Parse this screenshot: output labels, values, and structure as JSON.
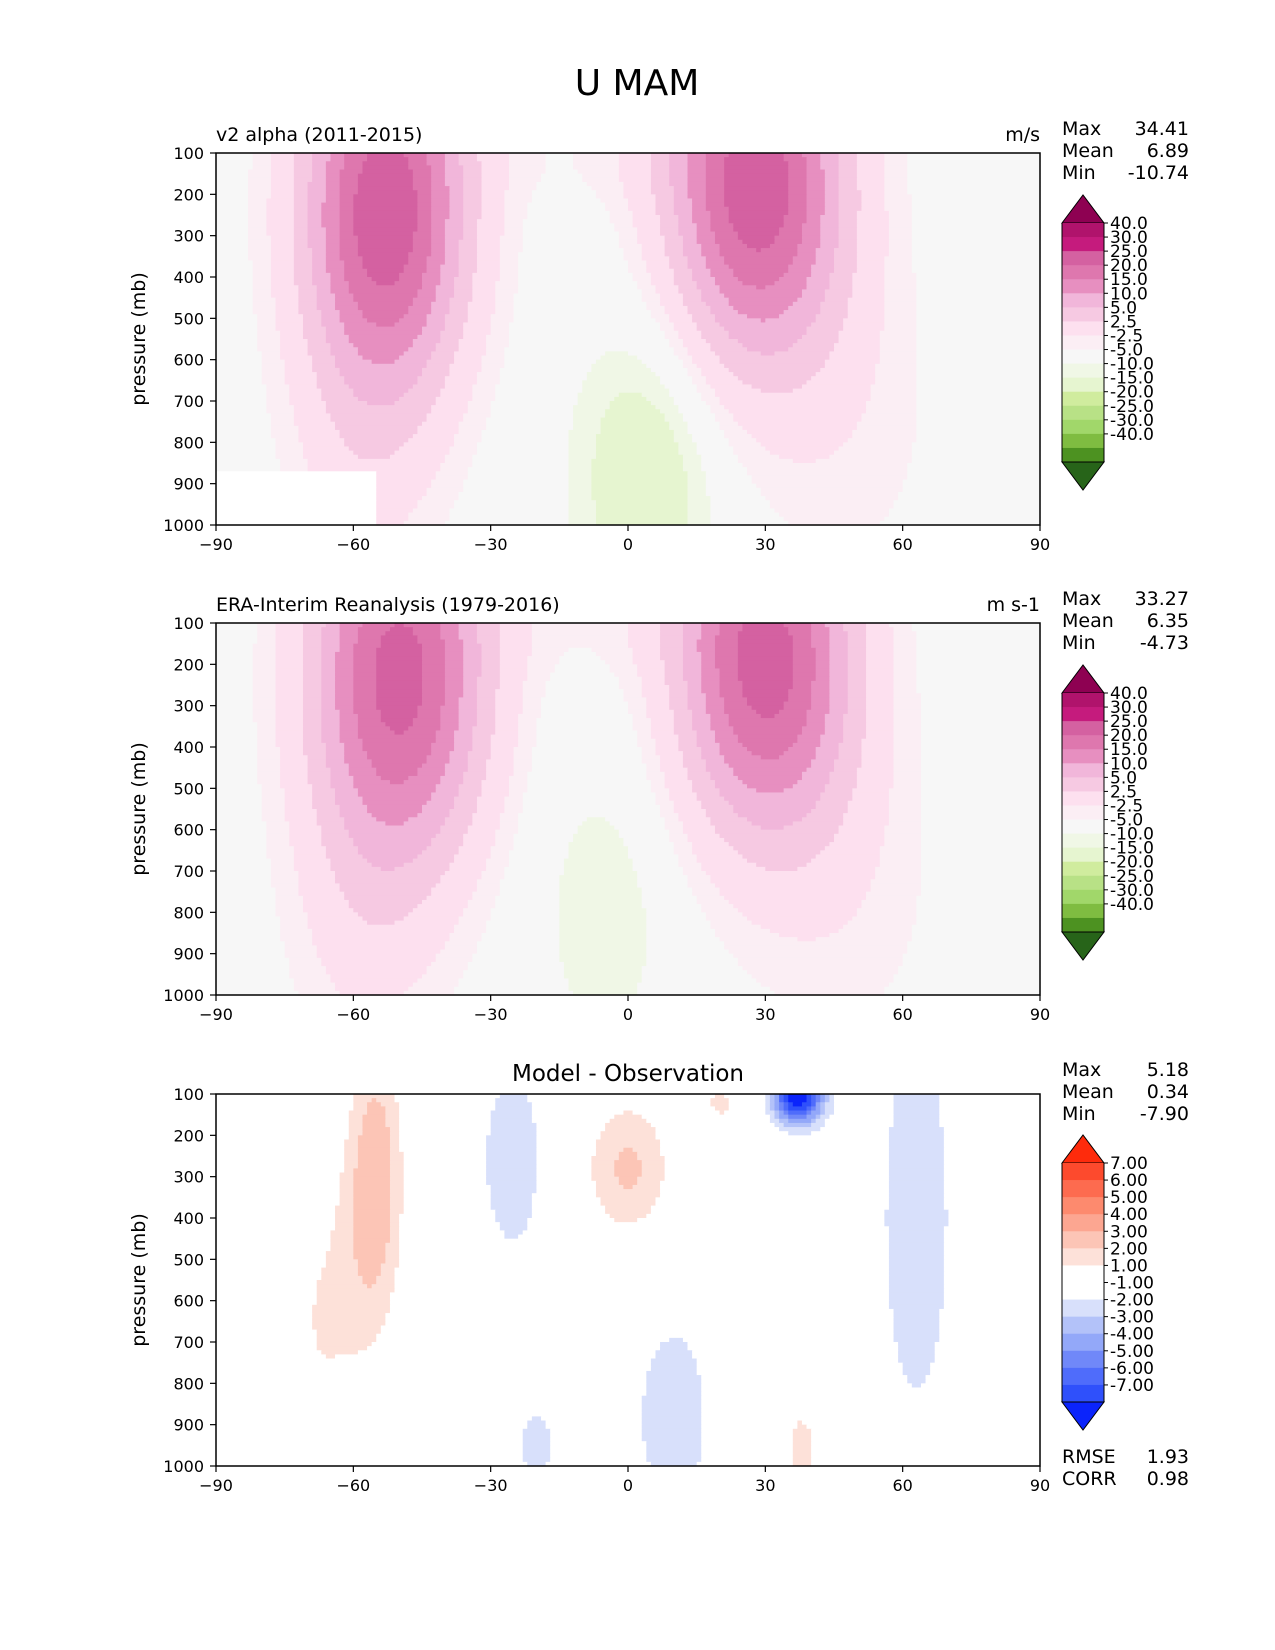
{
  "title": "U MAM",
  "palettes": {
    "full_field": [
      "#276419",
      "#4d9221",
      "#7fbc41",
      "#a1d76a",
      "#b8e186",
      "#d0ec9e",
      "#e6f5d0",
      "#f0f7e6",
      "#f7f7f7",
      "#fbeef4",
      "#fde0ef",
      "#f6c9e2",
      "#f1b6da",
      "#e78fc0",
      "#de77ae",
      "#d461a1",
      "#c51b7d",
      "#b0136c",
      "#8e0152"
    ],
    "difference": [
      "#0b24fb",
      "#2f50fb",
      "#4f6cfb",
      "#7088f9",
      "#93a8f9",
      "#b3c2f9",
      "#d8e0fb",
      "#ffffff",
      "#ffffff",
      "#fde1d9",
      "#fcc5b6",
      "#fca691",
      "#fd8a6e",
      "#fd6b4f",
      "#fd4a2d",
      "#fe2b0c"
    ]
  },
  "chart_data": [
    {
      "type": "contour",
      "panel": "model",
      "left_title": "v2 alpha (2011-2015)",
      "right_title": "m/s",
      "xlabel": "",
      "ylabel": "pressure (mb)",
      "xlim": [
        -90,
        90
      ],
      "ylim": [
        1000,
        100
      ],
      "xticks": [
        "−90",
        "−60",
        "−30",
        "0",
        "30",
        "60",
        "90"
      ],
      "yticks": [
        "100",
        "200",
        "300",
        "400",
        "500",
        "600",
        "700",
        "800",
        "900",
        "1000"
      ],
      "stats": {
        "max_label": "Max",
        "max": "34.41",
        "mean_label": "Mean",
        "mean": "6.89",
        "min_label": "Min",
        "min": "-10.74"
      },
      "colorbar_ticks": [
        "40.0",
        "30.0",
        "25.0",
        "20.0",
        "15.0",
        "10.0",
        "5.0",
        "2.5",
        "-2.5",
        "-5.0",
        "-10.0",
        "-15.0",
        "-20.0",
        "-25.0",
        "-30.0",
        "-40.0"
      ],
      "jets": [
        {
          "lat": -53,
          "p": 240,
          "peak": 34,
          "sx": 13,
          "sp": 320
        },
        {
          "lat": 28,
          "p": 190,
          "peak": 33,
          "sx": 14,
          "sp": 300
        }
      ],
      "easterly": {
        "lat": 4,
        "p": 880,
        "peak": -9
      },
      "no_data_region": {
        "lat": [
          -90,
          -55
        ],
        "p_below": 870
      }
    },
    {
      "type": "contour",
      "panel": "observation",
      "left_title": "ERA-Interim Reanalysis (1979-2016)",
      "right_title": "m s-1",
      "xlabel": "",
      "ylabel": "pressure (mb)",
      "xlim": [
        -90,
        90
      ],
      "ylim": [
        1000,
        100
      ],
      "xticks": [
        "−90",
        "−60",
        "−30",
        "0",
        "30",
        "60",
        "90"
      ],
      "yticks": [
        "100",
        "200",
        "300",
        "400",
        "500",
        "600",
        "700",
        "800",
        "900",
        "1000"
      ],
      "stats": {
        "max_label": "Max",
        "max": "33.27",
        "mean_label": "Mean",
        "mean": "6.35",
        "min_label": "Min",
        "min": "-4.73"
      },
      "colorbar_ticks": [
        "40.0",
        "30.0",
        "25.0",
        "20.0",
        "15.0",
        "10.0",
        "5.0",
        "2.5",
        "-2.5",
        "-5.0",
        "-10.0",
        "-15.0",
        "-20.0",
        "-25.0",
        "-30.0",
        "-40.0"
      ],
      "jets": [
        {
          "lat": -50,
          "p": 230,
          "peak": 32,
          "sx": 14,
          "sp": 330
        },
        {
          "lat": 30,
          "p": 200,
          "peak": 32,
          "sx": 14,
          "sp": 300
        }
      ],
      "easterly": {
        "lat": -5,
        "p": 780,
        "peak": -4.5
      }
    },
    {
      "type": "contour",
      "panel": "difference",
      "center_title": "Model - Observation",
      "xlabel": "",
      "ylabel": "pressure (mb)",
      "xlim": [
        -90,
        90
      ],
      "ylim": [
        1000,
        100
      ],
      "xticks": [
        "−90",
        "−60",
        "−30",
        "0",
        "30",
        "60",
        "90"
      ],
      "yticks": [
        "100",
        "200",
        "300",
        "400",
        "500",
        "600",
        "700",
        "800",
        "900",
        "1000"
      ],
      "stats": {
        "max_label": "Max",
        "max": "5.18",
        "mean_label": "Mean",
        "mean": "0.34",
        "min_label": "Min",
        "min": "-7.90"
      },
      "colorbar_ticks": [
        "7.00",
        "6.00",
        "5.00",
        "4.00",
        "3.00",
        "2.00",
        "1.00",
        "-1.00",
        "-2.00",
        "-3.00",
        "-4.00",
        "-5.00",
        "-6.00",
        "-7.00"
      ],
      "metrics": {
        "rmse_label": "RMSE",
        "rmse": "1.93",
        "corr_label": "CORR",
        "corr": "0.98"
      },
      "no_data_region": {
        "lat": [
          -90,
          -55
        ],
        "p_below": 870
      }
    }
  ]
}
